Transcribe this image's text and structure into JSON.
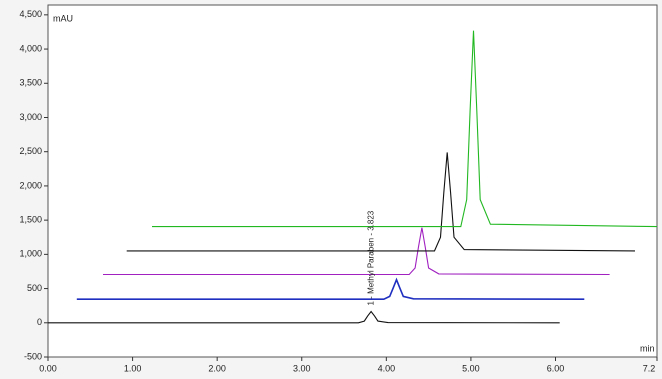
{
  "chart_data": {
    "type": "line",
    "ylabel": "mAU",
    "xlabel": "min",
    "xlim": [
      0,
      7.2
    ],
    "ylim": [
      -500,
      4600
    ],
    "xticks": [
      {
        "value": 0,
        "label": "0.00"
      },
      {
        "value": 1,
        "label": "1.00"
      },
      {
        "value": 2,
        "label": "2.00"
      },
      {
        "value": 3,
        "label": "3.00"
      },
      {
        "value": 4,
        "label": "4.00"
      },
      {
        "value": 5,
        "label": "5.00"
      },
      {
        "value": 6,
        "label": "6.00"
      },
      7.2
    ],
    "yticks": [
      -500,
      0,
      500,
      {
        "value": 1000,
        "label": "1,000"
      },
      {
        "value": 1500,
        "label": "1,500"
      },
      {
        "value": 2000,
        "label": "2,000"
      },
      {
        "value": 2500,
        "label": "2,500"
      },
      {
        "value": 3000,
        "label": "3,000"
      },
      {
        "value": 3500,
        "label": "3,500"
      },
      {
        "value": 4000,
        "label": "4,000"
      },
      {
        "value": 4500,
        "label": "4,500"
      }
    ],
    "annotations": [
      {
        "text": "1 - Methyl Paraben - 3.823",
        "x": 3.823
      }
    ],
    "series": [
      {
        "color": "#111111",
        "x": [
          0,
          3.67,
          3.74,
          3.78,
          3.82,
          3.86,
          3.9,
          4.02,
          6.05
        ],
        "values": [
          0,
          0,
          25,
          100,
          165,
          100,
          25,
          3,
          0
        ]
      },
      {
        "color": "#1f2fc0",
        "x": [
          0.34,
          3.97,
          4.04,
          4.08,
          4.12,
          4.16,
          4.2,
          4.32,
          6.34
        ],
        "values": [
          345,
          345,
          385,
          505,
          630,
          505,
          385,
          350,
          345
        ]
      },
      {
        "color": "#a020c0",
        "x": [
          0.65,
          4.27,
          4.34,
          4.38,
          4.42,
          4.46,
          4.5,
          4.62,
          6.64
        ],
        "values": [
          705,
          705,
          800,
          1110,
          1390,
          1110,
          800,
          715,
          705
        ]
      },
      {
        "color": "#111111",
        "x": [
          0.93,
          4.57,
          4.64,
          4.68,
          4.72,
          4.76,
          4.8,
          4.92,
          6.94
        ],
        "values": [
          1050,
          1050,
          1250,
          1900,
          2490,
          1900,
          1250,
          1070,
          1050
        ]
      },
      {
        "color": "#22b822",
        "x": [
          1.23,
          4.88,
          4.95,
          4.99,
          5.03,
          5.07,
          5.11,
          5.23,
          7.2
        ],
        "values": [
          1405,
          1405,
          1800,
          3100,
          4270,
          3100,
          1800,
          1440,
          1405
        ]
      }
    ]
  }
}
